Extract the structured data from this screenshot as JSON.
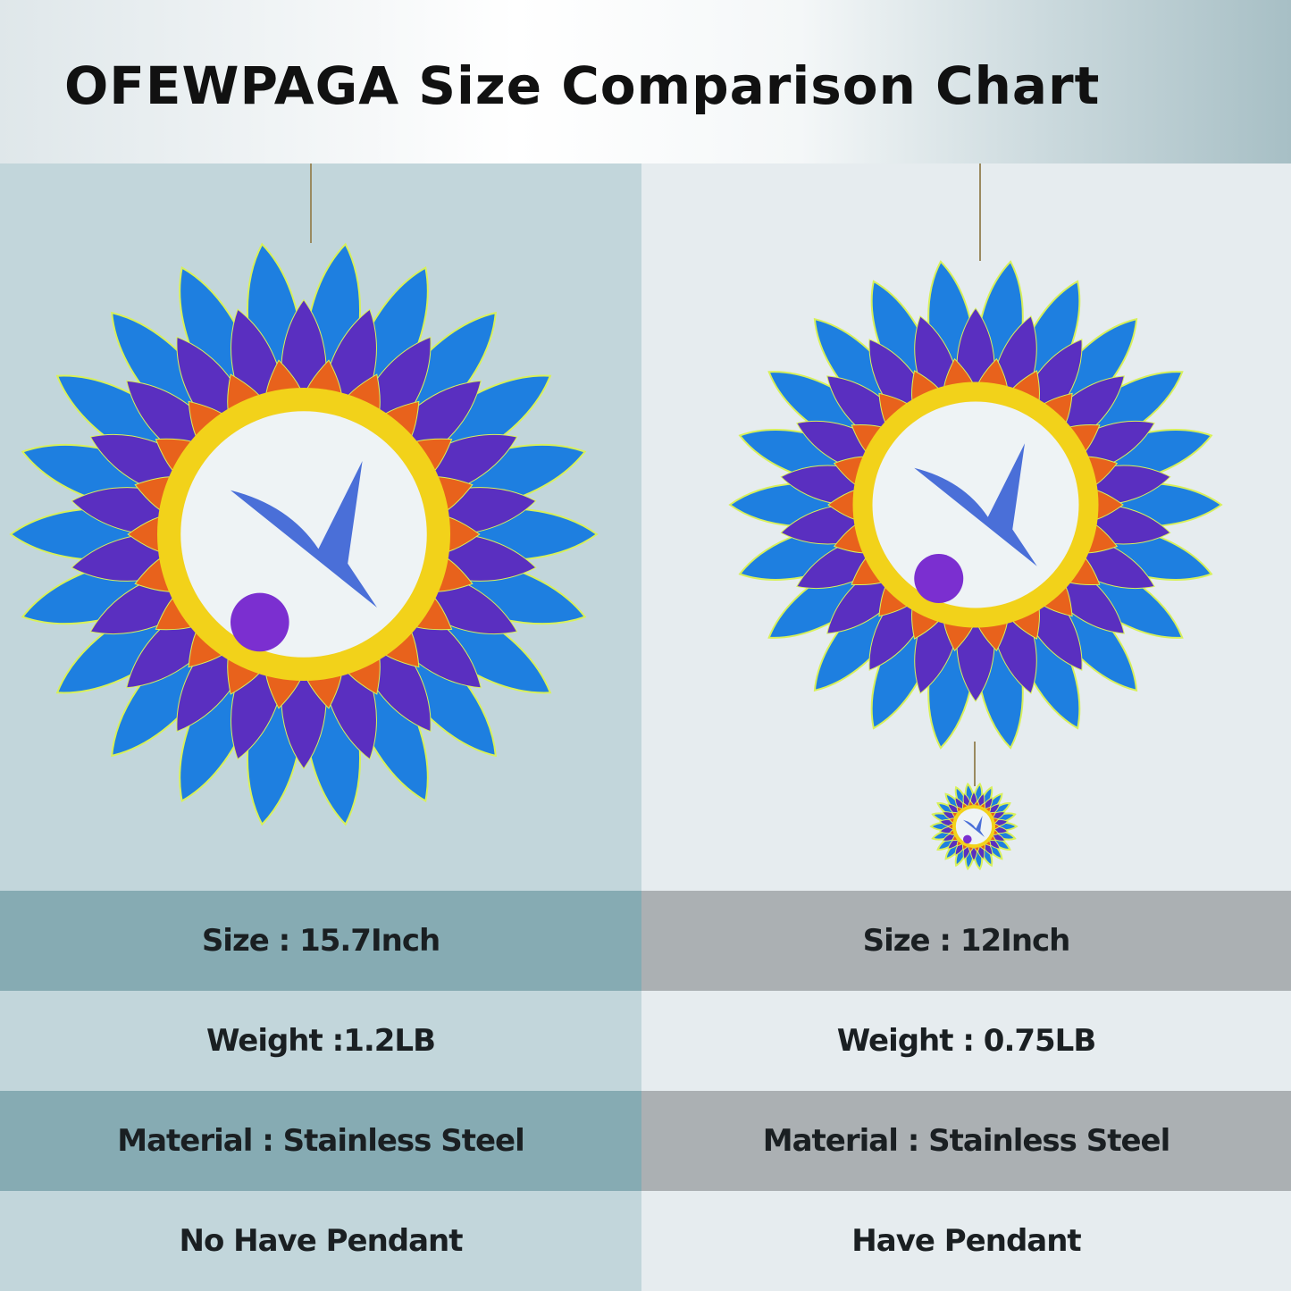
{
  "title": "OFEWPAGA Size Comparison Chart",
  "products": [
    {
      "size": "Size : 15.7Inch",
      "weight": "Weight :1.2LB",
      "material": "Material : Stainless Steel",
      "pendant": "No Have Pendant"
    },
    {
      "size": "Size : 12Inch",
      "weight": "Weight : 0.75LB",
      "material": "Material : Stainless Steel",
      "pendant": "Have Pendant"
    }
  ],
  "colors": {
    "left_dark": "#86abb3",
    "left_light": "#c2d6db",
    "right_dark": "#abb0b3",
    "right_light": "#e6ecef",
    "petal_blue": "#1e7fe0",
    "petal_purple": "#5a2fc0",
    "ring_yellow": "#f2d21a",
    "ring_orange": "#e8621c"
  }
}
